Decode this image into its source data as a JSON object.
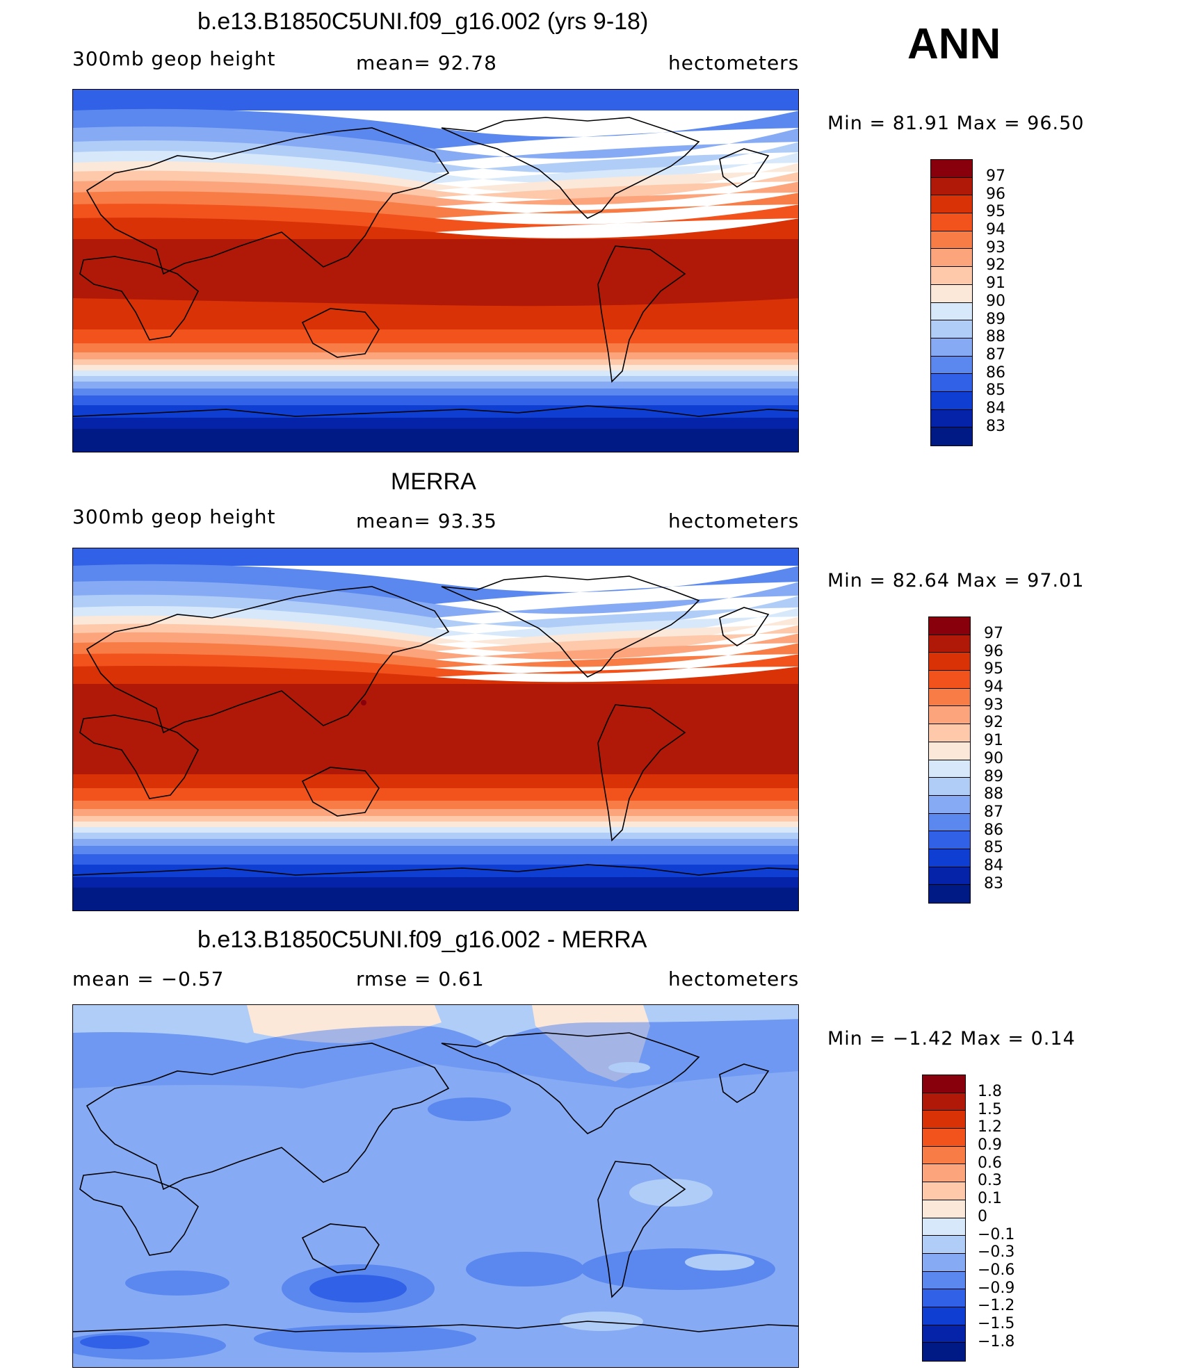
{
  "season": "ANN",
  "panels": [
    {
      "title": "b.e13.B1850C5UNI.f09_g16.002 (yrs 9-18)",
      "left_label": "300mb  geop  height",
      "center_label": "mean=   92.78",
      "right_label": "hectometers",
      "minmax": "Min  =    81.91  Max  =    96.50",
      "legend_labels": [
        "97",
        "96",
        "95",
        "94",
        "93",
        "92",
        "91",
        "90",
        "89",
        "88",
        "87",
        "86",
        "85",
        "84",
        "83"
      ],
      "colors": [
        "#87000b",
        "#b01808",
        "#d83206",
        "#f2521c",
        "#f87c46",
        "#fca47c",
        "#fdc9aa",
        "#fce8d8",
        "#d7e8fb",
        "#b0cdf8",
        "#86aaf4",
        "#5b88ee",
        "#3061e6",
        "#0e3fd2",
        "#0423a8",
        "#001a85"
      ]
    },
    {
      "title": "MERRA",
      "left_label": "300mb  geop  height",
      "center_label": "mean=   93.35",
      "right_label": "hectometers",
      "minmax": "Min  =    82.64  Max  =    97.01",
      "legend_labels": [
        "97",
        "96",
        "95",
        "94",
        "93",
        "92",
        "91",
        "90",
        "89",
        "88",
        "87",
        "86",
        "85",
        "84",
        "83"
      ],
      "colors": [
        "#87000b",
        "#b01808",
        "#d83206",
        "#f2521c",
        "#f87c46",
        "#fca47c",
        "#fdc9aa",
        "#fce8d8",
        "#d7e8fb",
        "#b0cdf8",
        "#86aaf4",
        "#5b88ee",
        "#3061e6",
        "#0e3fd2",
        "#0423a8",
        "#001a85"
      ]
    },
    {
      "title": "b.e13.B1850C5UNI.f09_g16.002 - MERRA",
      "left_label": "mean  =    −0.57",
      "center_label": "rmse  =     0.61",
      "right_label": "hectometers",
      "minmax": "Min  =    −1.42  Max  =      0.14",
      "legend_labels": [
        "1.8",
        "1.5",
        "1.2",
        "0.9",
        "0.6",
        "0.3",
        "0.1",
        "0",
        "−0.1",
        "−0.3",
        "−0.6",
        "−0.9",
        "−1.2",
        "−1.5",
        "−1.8"
      ],
      "colors": [
        "#87000b",
        "#b01808",
        "#d83206",
        "#f2521c",
        "#f87c46",
        "#fca47c",
        "#fdc9aa",
        "#fce8d8",
        "#d7e8fb",
        "#b0cdf8",
        "#86aaf4",
        "#5b88ee",
        "#3061e6",
        "#0e3fd2",
        "#0423a8",
        "#001a85"
      ]
    }
  ]
}
